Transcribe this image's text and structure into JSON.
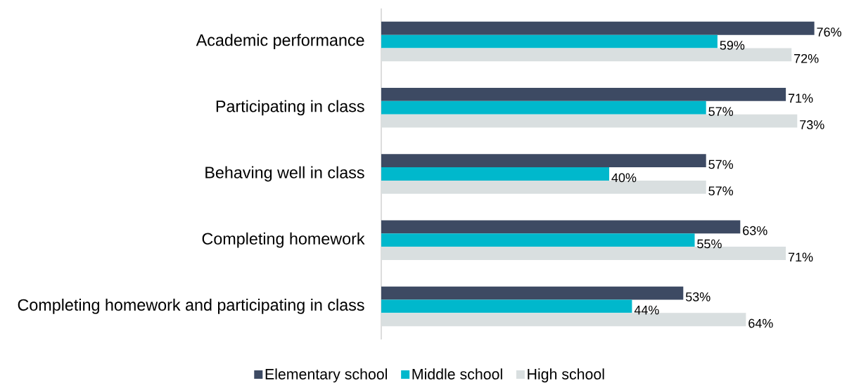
{
  "chart_data": {
    "type": "bar",
    "orientation": "horizontal",
    "categories": [
      "Academic performance",
      "Participating in class",
      "Behaving well in class",
      "Completing homework",
      "Completing homework and participating in class"
    ],
    "series": [
      {
        "name": "Elementary school",
        "color": "#3d4a63",
        "values": [
          76,
          71,
          57,
          63,
          53
        ],
        "value_labels": [
          "76%",
          "71%",
          "57%",
          "63%",
          "53%"
        ]
      },
      {
        "name": "Middle school",
        "color": "#00b8cc",
        "values": [
          59,
          57,
          40,
          55,
          44
        ],
        "value_labels": [
          "59%",
          "57%",
          "40%",
          "55%",
          "44%"
        ]
      },
      {
        "name": "High school",
        "color": "#d9dfe0",
        "values": [
          72,
          73,
          57,
          71,
          64
        ],
        "value_labels": [
          "72%",
          "73%",
          "57%",
          "71%",
          "64%"
        ]
      }
    ],
    "legend": "bottom"
  }
}
